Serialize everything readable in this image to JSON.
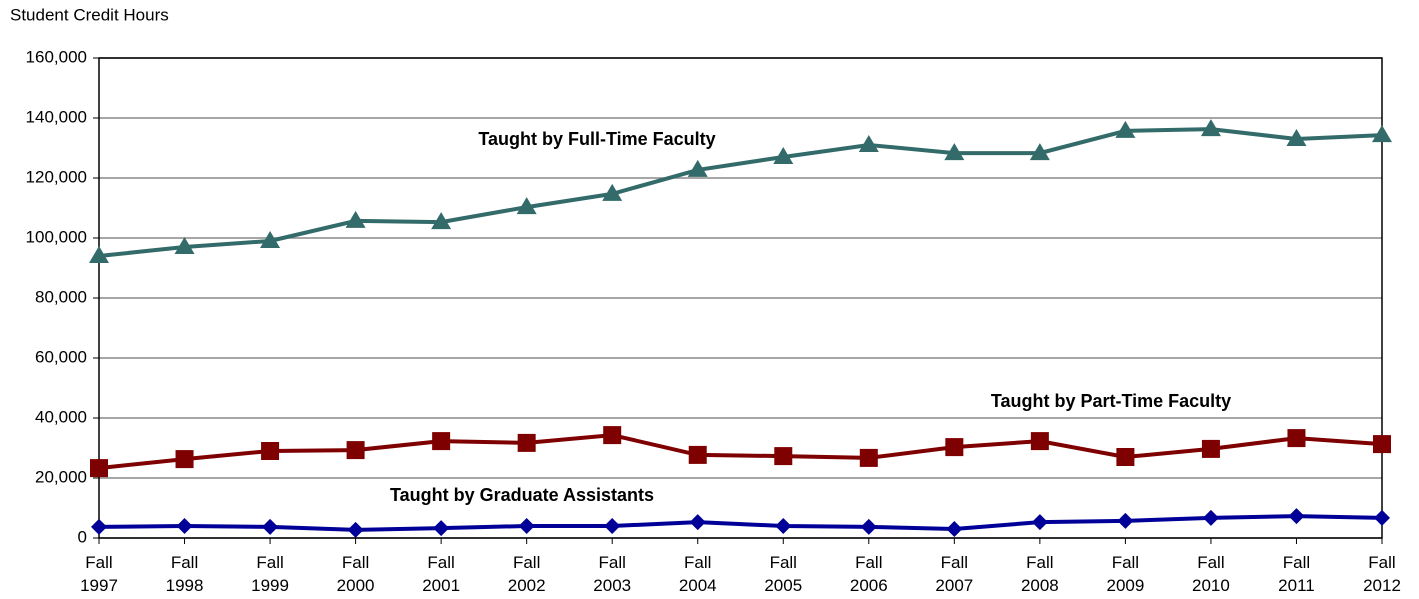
{
  "chart_data": {
    "type": "line",
    "y_axis_label": "Student Credit Hours",
    "categories": [
      "Fall 1997",
      "Fall 1998",
      "Fall 1999",
      "Fall 2000",
      "Fall 2001",
      "Fall 2002",
      "Fall 2003",
      "Fall 2004",
      "Fall 2005",
      "Fall 2006",
      "Fall 2007",
      "Fall 2008",
      "Fall 2009",
      "Fall 2010",
      "Fall 2011",
      "Fall 2012"
    ],
    "series": [
      {
        "name": "Taught by Full-Time Faculty",
        "color": "#336a6a",
        "marker": "triangle",
        "values": [
          94000,
          97000,
          99000,
          105700,
          105300,
          110300,
          114700,
          122700,
          127000,
          131000,
          128300,
          128300,
          135700,
          136300,
          133000,
          134300
        ]
      },
      {
        "name": "Taught by Part-Time Faculty",
        "color": "#7f0000",
        "marker": "square",
        "values": [
          23300,
          26300,
          29000,
          29300,
          32300,
          31700,
          34300,
          27700,
          27300,
          26700,
          30300,
          32300,
          27000,
          29700,
          33300,
          31300
        ]
      },
      {
        "name": "Taught by Graduate Assistants",
        "color": "#000099",
        "marker": "diamond",
        "values": [
          3700,
          4000,
          3700,
          2700,
          3300,
          4000,
          4000,
          5300,
          4000,
          3700,
          3000,
          5300,
          5700,
          6700,
          7300,
          6700
        ]
      }
    ],
    "ylim": [
      0,
      160000
    ],
    "yticks": [
      0,
      {
        "value": 20000,
        "label": "20,000"
      },
      {
        "value": 40000,
        "label": "40,000"
      },
      {
        "value": 60000,
        "label": "60,000"
      },
      {
        "value": 80000,
        "label": "80,000"
      },
      {
        "value": 100000,
        "label": "100,000"
      },
      {
        "value": 120000,
        "label": "120,000"
      },
      {
        "value": 140000,
        "label": "140,000"
      },
      {
        "value": 160000,
        "label": "160,000"
      }
    ],
    "grid": true
  }
}
